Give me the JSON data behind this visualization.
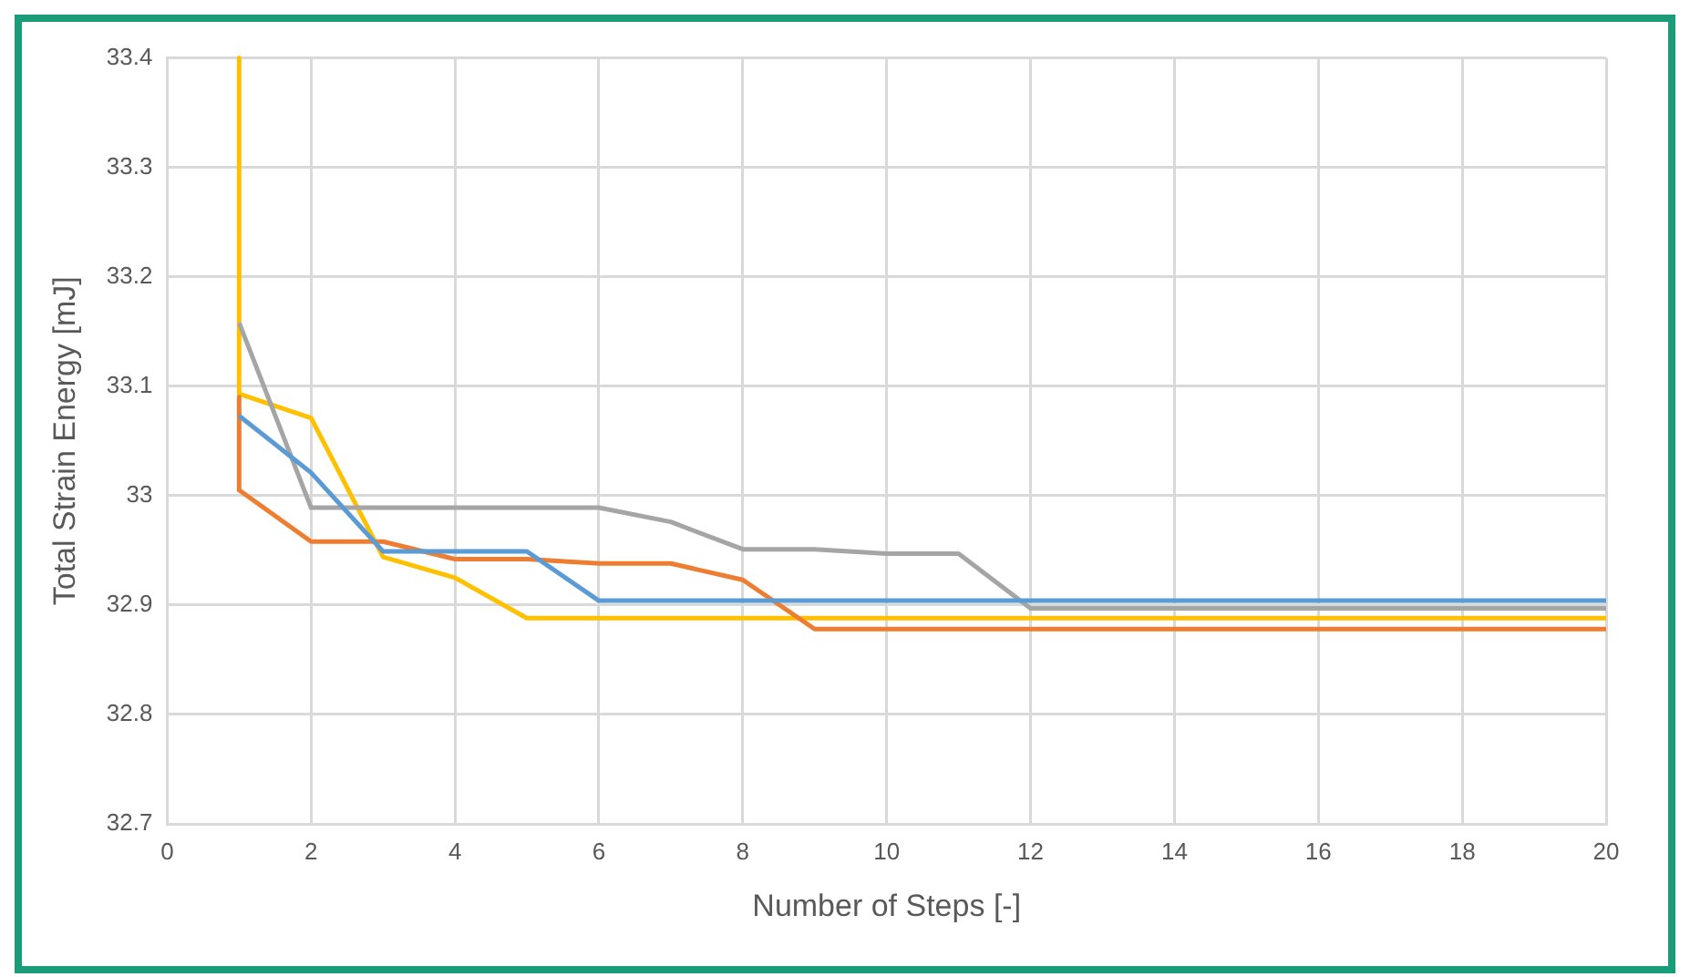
{
  "chart_data": {
    "type": "line",
    "xlabel": "Number of Steps [-]",
    "ylabel": "Total Strain Energy [mJ]",
    "xlim": [
      0,
      20
    ],
    "xticks": [
      0,
      2,
      4,
      6,
      8,
      10,
      12,
      14,
      16,
      18,
      20
    ],
    "ylim": [
      32.7,
      33.4
    ],
    "yticks": [
      32.7,
      32.8,
      32.9,
      33,
      33.1,
      33.2,
      33.3,
      33.4
    ],
    "grid": true,
    "legend": false,
    "marker": "none",
    "line_style": "solid",
    "series": [
      {
        "color": "#5b9bd5",
        "x": [
          1,
          2,
          3,
          4,
          5,
          6,
          7,
          8,
          9,
          10,
          11,
          12,
          13,
          14,
          15,
          16,
          17,
          18,
          19,
          20
        ],
        "values": [
          33.073,
          33.021,
          32.949,
          32.949,
          32.949,
          32.904,
          32.904,
          32.904,
          32.904,
          32.904,
          32.904,
          32.904,
          32.904,
          32.904,
          32.904,
          32.904,
          32.904,
          32.904,
          32.904,
          32.904
        ]
      },
      {
        "color": "#ed7d31",
        "x": [
          1,
          1,
          2,
          3,
          4,
          5,
          6,
          7,
          8,
          9,
          10,
          11,
          12,
          13,
          14,
          15,
          16,
          17,
          18,
          19,
          20
        ],
        "values": [
          33.09,
          33.005,
          32.958,
          32.958,
          32.942,
          32.942,
          32.938,
          32.938,
          32.923,
          32.878,
          32.878,
          32.878,
          32.878,
          32.878,
          32.878,
          32.878,
          32.878,
          32.878,
          32.878,
          32.878,
          32.878
        ]
      },
      {
        "color": "#a5a5a5",
        "x": [
          1,
          2,
          3,
          4,
          5,
          6,
          7,
          8,
          9,
          10,
          11,
          12,
          13,
          14,
          15,
          16,
          17,
          18,
          19,
          20
        ],
        "values": [
          33.158,
          32.989,
          32.989,
          32.989,
          32.989,
          32.989,
          32.976,
          32.951,
          32.951,
          32.947,
          32.947,
          32.897,
          32.897,
          32.897,
          32.897,
          32.897,
          32.897,
          32.897,
          32.897,
          32.897
        ]
      },
      {
        "color": "#ffc000",
        "x": [
          1,
          1,
          2,
          3,
          4,
          5,
          6,
          7,
          8,
          9,
          10,
          11,
          12,
          13,
          14,
          15,
          16,
          17,
          18,
          19,
          20
        ],
        "values": [
          33.4,
          33.093,
          33.071,
          32.944,
          32.925,
          32.888,
          32.888,
          32.888,
          32.888,
          32.888,
          32.888,
          32.888,
          32.888,
          32.888,
          32.888,
          32.888,
          32.888,
          32.888,
          32.888,
          32.888,
          32.888
        ]
      }
    ]
  }
}
